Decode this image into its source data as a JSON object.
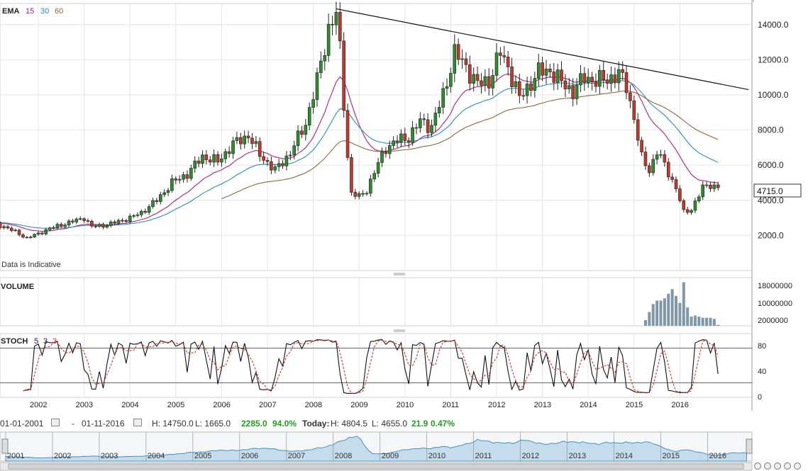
{
  "legend": {
    "ema_label": "EMA",
    "ema_periods": [
      "15",
      "30",
      "60"
    ],
    "ema_colors": [
      "#b0207a",
      "#2a8fb0",
      "#8a6a3a"
    ],
    "data_note": "Data is Indicative",
    "current_price": "4715.0"
  },
  "volume_panel": {
    "label": "VOLUME",
    "ticks": [
      "18000000",
      "10000000",
      "2000000"
    ]
  },
  "stoch_panel": {
    "label": "STOCH",
    "params": [
      "5",
      "3",
      "3"
    ],
    "ticks": [
      "80",
      "40",
      "0"
    ]
  },
  "info": {
    "from_date": "01-01-2001",
    "dash": "-",
    "to_date": "01-11-2016",
    "high": "H: 14750.0",
    "low": "L: 1665.0",
    "change": "2285.0",
    "change_pct": "94.0%",
    "today_label": "Today:",
    "today_high": "H: 4804.5",
    "today_low": "L: 4655.0",
    "today_change": "21.9",
    "today_pct": "0.47%"
  },
  "navigator": {
    "years": [
      "2001",
      "2002",
      "2003",
      "2004",
      "2005",
      "2006",
      "2007",
      "2008",
      "2009",
      "2010",
      "2011",
      "2012",
      "2013",
      "2014",
      "2015",
      "2016"
    ]
  },
  "colors": {
    "up": "#2e8b2e",
    "down": "#c0392b",
    "grid": "#e4e4e4",
    "change_green": "#22a022"
  },
  "chart_data": {
    "type": "candlestick",
    "frequency": "monthly",
    "x_axis_years": [
      "2002",
      "2003",
      "2004",
      "2005",
      "2006",
      "2007",
      "2008",
      "2009",
      "2010",
      "2011",
      "2012",
      "2013",
      "2014",
      "2015",
      "2016"
    ],
    "y_ticks": [
      "14000.0",
      "12000.0",
      "10000.0",
      "8000.0",
      "6000.0",
      "4000.0",
      "2000.0"
    ],
    "ylim": [
      0,
      15200
    ],
    "anchors": [
      [
        "2001-01",
        2700
      ],
      [
        "2001-04",
        2500
      ],
      [
        "2001-07",
        2200
      ],
      [
        "2001-10",
        1850
      ],
      [
        "2002-01",
        2100
      ],
      [
        "2002-04",
        2400
      ],
      [
        "2002-07",
        2600
      ],
      [
        "2002-10",
        2800
      ],
      [
        "2003-01",
        3000
      ],
      [
        "2003-03",
        2500
      ],
      [
        "2003-07",
        2600
      ],
      [
        "2003-10",
        2800
      ],
      [
        "2004-01",
        3000
      ],
      [
        "2004-04",
        3300
      ],
      [
        "2004-08",
        4000
      ],
      [
        "2004-12",
        5000
      ],
      [
        "2005-04",
        5500
      ],
      [
        "2005-08",
        6500
      ],
      [
        "2005-12",
        6200
      ],
      [
        "2006-04",
        7200
      ],
      [
        "2006-08",
        7700
      ],
      [
        "2006-11",
        6600
      ],
      [
        "2007-03",
        5700
      ],
      [
        "2007-07",
        6700
      ],
      [
        "2007-11",
        8400
      ],
      [
        "2008-02",
        10800
      ],
      [
        "2008-05",
        13800
      ],
      [
        "2008-07",
        14600
      ],
      [
        "2008-08",
        12500
      ],
      [
        "2008-09",
        9500
      ],
      [
        "2008-10",
        6500
      ],
      [
        "2008-11",
        4400
      ],
      [
        "2009-01",
        4200
      ],
      [
        "2009-03",
        4600
      ],
      [
        "2009-05",
        5600
      ],
      [
        "2009-08",
        7000
      ],
      [
        "2009-11",
        7400
      ],
      [
        "2010-02",
        7600
      ],
      [
        "2010-05",
        8500
      ],
      [
        "2010-08",
        8200
      ],
      [
        "2010-11",
        10000
      ],
      [
        "2011-02",
        12400
      ],
      [
        "2011-05",
        11600
      ],
      [
        "2011-08",
        10600
      ],
      [
        "2011-11",
        10800
      ],
      [
        "2012-02",
        12400
      ],
      [
        "2012-04",
        11600
      ],
      [
        "2012-07",
        9800
      ],
      [
        "2012-09",
        10400
      ],
      [
        "2012-12",
        11300
      ],
      [
        "2013-03",
        11400
      ],
      [
        "2013-06",
        10700
      ],
      [
        "2013-09",
        10200
      ],
      [
        "2013-12",
        11000
      ],
      [
        "2014-03",
        10800
      ],
      [
        "2014-06",
        10900
      ],
      [
        "2014-09",
        11200
      ],
      [
        "2014-11",
        10500
      ],
      [
        "2015-01",
        8700
      ],
      [
        "2015-03",
        6400
      ],
      [
        "2015-05",
        5700
      ],
      [
        "2015-07",
        6800
      ],
      [
        "2015-09",
        6000
      ],
      [
        "2015-12",
        4700
      ],
      [
        "2016-02",
        3300
      ],
      [
        "2016-04",
        3500
      ],
      [
        "2016-07",
        4700
      ],
      [
        "2016-09",
        4900
      ],
      [
        "2016-11",
        4715
      ]
    ],
    "ema_periods": [
      15,
      30,
      60
    ],
    "trendline": [
      [
        "2008-07",
        14900
      ],
      [
        "2017-07",
        10300
      ]
    ],
    "volume_bars": [
      [
        "2015-04",
        2500000
      ],
      [
        "2015-05",
        6000000
      ],
      [
        "2015-06",
        9500000
      ],
      [
        "2015-07",
        11000000
      ],
      [
        "2015-08",
        11000000
      ],
      [
        "2015-09",
        12000000
      ],
      [
        "2015-10",
        14000000
      ],
      [
        "2015-11",
        16000000
      ],
      [
        "2015-12",
        13000000
      ],
      [
        "2016-01",
        10000000
      ],
      [
        "2016-02",
        19000000
      ],
      [
        "2016-03",
        8000000
      ],
      [
        "2016-04",
        4000000
      ],
      [
        "2016-05",
        4500000
      ],
      [
        "2016-06",
        4000000
      ],
      [
        "2016-07",
        3500000
      ],
      [
        "2016-08",
        3500000
      ],
      [
        "2016-09",
        3500000
      ],
      [
        "2016-10",
        3000000
      ],
      [
        "2016-11",
        400000
      ]
    ],
    "stoch_levels": [
      80,
      20
    ]
  }
}
